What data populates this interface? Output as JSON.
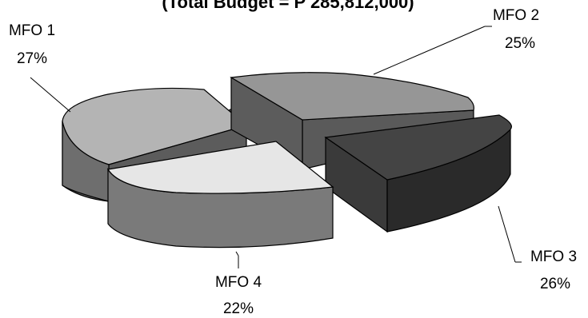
{
  "chart_data": {
    "type": "pie",
    "title": "(Total Budget = P 285,812,000)",
    "slices": [
      {
        "name": "MFO 1",
        "pct_label": "27%",
        "value": 27,
        "color": "#b4b4b4",
        "side": "#5c5c5c"
      },
      {
        "name": "MFO 2",
        "pct_label": "25%",
        "value": 25,
        "color": "#969696",
        "side": "#5a5a5a"
      },
      {
        "name": "MFO 3",
        "pct_label": "26%",
        "value": 26,
        "color": "#444444",
        "side": "#2a2a2a"
      },
      {
        "name": "MFO 4",
        "pct_label": "22%",
        "value": 22,
        "color": "#e6e6e6",
        "side": "#8a8a8a"
      }
    ],
    "style": "3d-exploded"
  }
}
